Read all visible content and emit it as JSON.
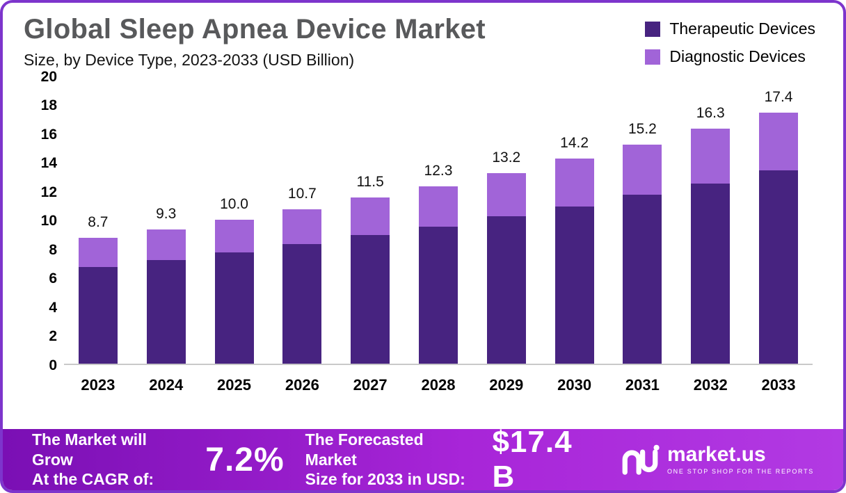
{
  "header": {
    "title": "Global Sleep Apnea Device Market",
    "subtitle": "Size, by Device Type, 2023-2033 (USD Billion)"
  },
  "legend": [
    {
      "label": "Therapeutic Devices",
      "color": "#472380"
    },
    {
      "label": "Diagnostic Devices",
      "color": "#a164d8"
    }
  ],
  "chart_data": {
    "type": "bar",
    "stacked": true,
    "title": "Global Sleep Apnea Device Market Size, by Device Type, 2023-2033 (USD Billion)",
    "categories": [
      "2023",
      "2024",
      "2025",
      "2026",
      "2027",
      "2028",
      "2029",
      "2030",
      "2031",
      "2032",
      "2033"
    ],
    "series": [
      {
        "name": "Therapeutic Devices",
        "color": "#472380",
        "values": [
          6.7,
          7.2,
          7.7,
          8.3,
          8.9,
          9.5,
          10.2,
          10.9,
          11.7,
          12.5,
          13.4
        ]
      },
      {
        "name": "Diagnostic Devices",
        "color": "#a164d8",
        "values": [
          2.0,
          2.1,
          2.3,
          2.4,
          2.6,
          2.8,
          3.0,
          3.3,
          3.5,
          3.8,
          4.0
        ]
      }
    ],
    "totals": [
      8.7,
      9.3,
      10.0,
      10.7,
      11.5,
      12.3,
      13.2,
      14.2,
      15.2,
      16.3,
      17.4
    ],
    "total_labels": [
      "8.7",
      "9.3",
      "10.0",
      "10.7",
      "11.5",
      "12.3",
      "13.2",
      "14.2",
      "15.2",
      "16.3",
      "17.4"
    ],
    "xlabel": "",
    "ylabel": "",
    "ylim": [
      0,
      20
    ],
    "yticks": [
      0,
      2,
      4,
      6,
      8,
      10,
      12,
      14,
      16,
      18,
      20
    ],
    "grid": false,
    "legend_position": "top-right"
  },
  "footer": {
    "growth_label_line1": "The Market will Grow",
    "growth_label_line2": "At the CAGR of:",
    "cagr_value": "7.2%",
    "forecast_label_line1": "The Forecasted Market",
    "forecast_label_line2": "Size for 2033 in USD:",
    "forecast_value": "$17.4 B",
    "brand": "market.us",
    "brand_tagline": "ONE STOP SHOP FOR THE REPORTS"
  }
}
